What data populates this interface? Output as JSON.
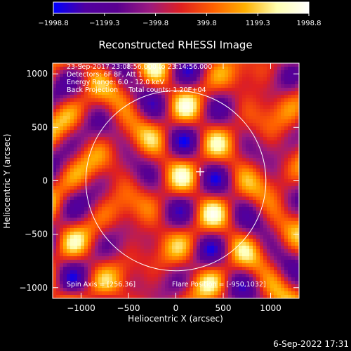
{
  "chart_data": {
    "type": "heatmap",
    "title": "Reconstructed RHESSI Image",
    "xlabel": "Heliocentric X (arcsec)",
    "ylabel": "Heliocentric Y (arcsec)",
    "xlim": [
      -1300,
      1300
    ],
    "ylim": [
      -1100,
      1100
    ],
    "x_ticks": [
      -1000,
      -500,
      0,
      500,
      1000
    ],
    "y_ticks": [
      -1000,
      -500,
      0,
      500,
      1000
    ],
    "x_tick_labels": [
      "−1000",
      "−500",
      "0",
      "500",
      "1000"
    ],
    "y_tick_labels": [
      "−1000",
      "−500",
      "0",
      "500",
      "1000"
    ],
    "colorbar": {
      "range": [
        -1998.8,
        1998.8
      ],
      "ticks": [
        -1998.8,
        -1199.3,
        -399.8,
        399.8,
        1199.3,
        1998.8
      ],
      "tick_labels": [
        "−1998.8",
        "−1199.3",
        "−399.8",
        "399.8",
        "1199.3",
        "1998.8"
      ],
      "colormap": [
        "#0000ff",
        "#5000a0",
        "#5a0090",
        "#9a1a80",
        "#e02020",
        "#ff6000",
        "#ffb000",
        "#ffffb0",
        "#ffffff"
      ]
    },
    "annotations": [
      "23-Sep-2017 23:08:56.000 to 23:14:56.000",
      "Detectors: 6F 8F, Att 1",
      "Energy Range: 6.0 - 12.0 keV",
      "Back Projection     Total counts: 1.20E+04"
    ],
    "spin_axis": "Spin Axis = [256.36]",
    "flare_position": "Flare Position = [-950,1032]",
    "cross_marker": [
      256,
      84
    ],
    "solar_limb_radius": 950,
    "grid": false,
    "timestamp": "6-Sep-2022 17:31",
    "colors": {
      "background": "#000000",
      "text": "#ffffff",
      "limb": "#ffffff"
    }
  }
}
